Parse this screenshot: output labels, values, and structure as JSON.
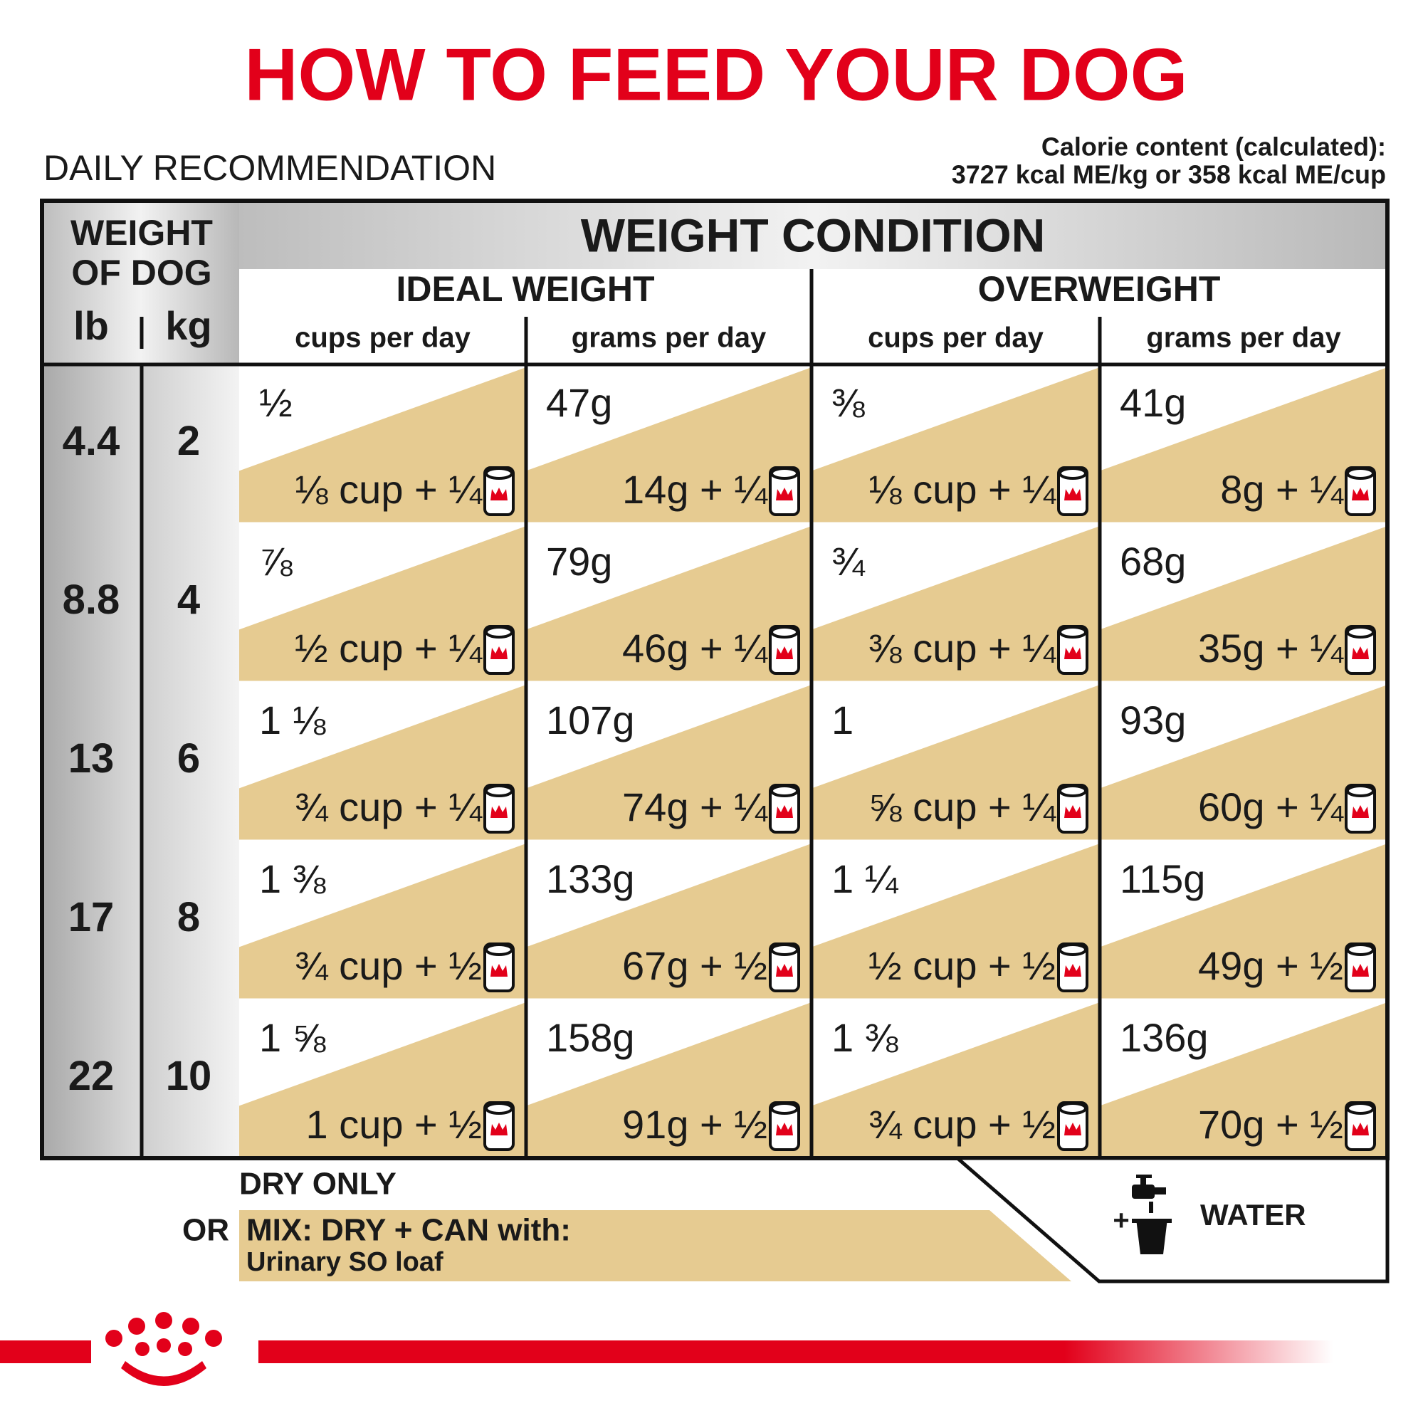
{
  "header": {
    "title": "HOW TO FEED YOUR DOG",
    "subtitle": "DAILY RECOMMENDATION",
    "calorie": [
      "Calorie content (calculated):",
      "3727 kcal ME/kg or 358 kcal ME/cup"
    ]
  },
  "table": {
    "weight_header": [
      "WEIGHT",
      "OF DOG"
    ],
    "units": [
      "lb",
      "kg"
    ],
    "condition_title": "WEIGHT CONDITION",
    "groups": [
      "IDEAL WEIGHT",
      "OVERWEIGHT"
    ],
    "subheads": [
      "cups per day",
      "grams per day",
      "cups per day",
      "grams per day"
    ],
    "rows": [
      {
        "lb": "4.4",
        "kg": "2",
        "cells": [
          {
            "dry": "½",
            "mix": "⅛ cup + ¼"
          },
          {
            "dry": "47g",
            "mix": "14g + ¼"
          },
          {
            "dry": "⅜",
            "mix": "⅛ cup + ¼"
          },
          {
            "dry": "41g",
            "mix": "8g + ¼"
          }
        ]
      },
      {
        "lb": "8.8",
        "kg": "4",
        "cells": [
          {
            "dry": "⅞",
            "mix": "½ cup + ¼"
          },
          {
            "dry": "79g",
            "mix": "46g + ¼"
          },
          {
            "dry": "¾",
            "mix": "⅜ cup + ¼"
          },
          {
            "dry": "68g",
            "mix": "35g + ¼"
          }
        ]
      },
      {
        "lb": "13",
        "kg": "6",
        "cells": [
          {
            "dry": "1 ⅛",
            "mix": "¾ cup + ¼"
          },
          {
            "dry": "107g",
            "mix": "74g + ¼"
          },
          {
            "dry": "1",
            "mix": "⅝ cup + ¼"
          },
          {
            "dry": "93g",
            "mix": "60g + ¼"
          }
        ]
      },
      {
        "lb": "17",
        "kg": "8",
        "cells": [
          {
            "dry": "1 ⅜",
            "mix": "¾ cup + ½"
          },
          {
            "dry": "133g",
            "mix": "67g + ½"
          },
          {
            "dry": "1 ¼",
            "mix": "½ cup + ½"
          },
          {
            "dry": "115g",
            "mix": "49g + ½"
          }
        ]
      },
      {
        "lb": "22",
        "kg": "10",
        "cells": [
          {
            "dry": "1 ⅝",
            "mix": "1 cup + ½"
          },
          {
            "dry": "158g",
            "mix": "91g + ½"
          },
          {
            "dry": "1 ⅜",
            "mix": "¾ cup + ½"
          },
          {
            "dry": "136g",
            "mix": "70g + ½"
          }
        ]
      }
    ]
  },
  "legend": {
    "dry": "DRY ONLY",
    "or": "OR",
    "mix": "MIX: DRY + CAN with:",
    "product": "Urinary SO loaf",
    "plus": "+",
    "water": "WATER"
  }
}
